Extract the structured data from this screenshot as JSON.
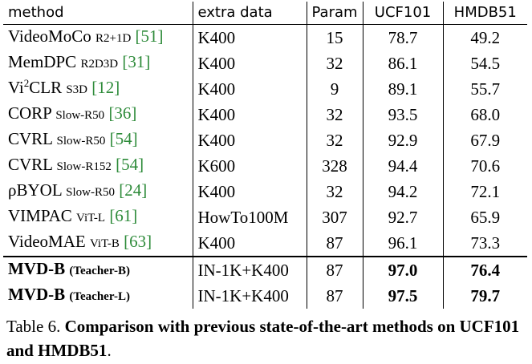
{
  "table": {
    "headers": {
      "method": "method",
      "extra_data": "extra data",
      "param": "Param",
      "ucf101": "UCF101",
      "hmdb51": "HMDB51"
    },
    "rows": [
      {
        "method": "VideoMoCo",
        "backbone": "R2+1D",
        "cite": "[51]",
        "extra": "K400",
        "param": "15",
        "ucf": "78.7",
        "hmdb": "49.2"
      },
      {
        "method": "MemDPC",
        "backbone": "R2D3D",
        "cite": "[31]",
        "extra": "K400",
        "param": "32",
        "ucf": "86.1",
        "hmdb": "54.5"
      },
      {
        "method": "Vi",
        "sup": "2",
        "method_rest": "CLR",
        "backbone": "S3D",
        "cite": "[12]",
        "extra": "K400",
        "param": "9",
        "ucf": "89.1",
        "hmdb": "55.7"
      },
      {
        "method": "CORP",
        "backbone": "Slow-R50",
        "cite": "[36]",
        "extra": "K400",
        "param": "32",
        "ucf": "93.5",
        "hmdb": "68.0"
      },
      {
        "method": "CVRL",
        "backbone": "Slow-R50",
        "cite": "[54]",
        "extra": "K400",
        "param": "32",
        "ucf": "92.9",
        "hmdb": "67.9"
      },
      {
        "method": "CVRL",
        "backbone": "Slow-R152",
        "cite": "[54]",
        "extra": "K600",
        "param": "328",
        "ucf": "94.4",
        "hmdb": "70.6"
      },
      {
        "method": "ρBYOL",
        "backbone": "Slow-R50",
        "cite": "[24]",
        "extra": "K400",
        "param": "32",
        "ucf": "94.2",
        "hmdb": "72.1"
      },
      {
        "method": "VIMPAC",
        "backbone": "ViT-L",
        "cite": "[61]",
        "extra": "HowTo100M",
        "param": "307",
        "ucf": "92.7",
        "hmdb": "65.9"
      },
      {
        "method": "VideoMAE",
        "backbone": "ViT-B",
        "cite": "[63]",
        "extra": "K400",
        "param": "87",
        "ucf": "96.1",
        "hmdb": "73.3"
      }
    ],
    "ours": [
      {
        "method": "MVD-B",
        "variant": "(Teacher-B)",
        "extra": "IN-1K+K400",
        "param": "87",
        "ucf": "97.0",
        "hmdb": "76.4"
      },
      {
        "method": "MVD-B",
        "variant": "(Teacher-L)",
        "extra": "IN-1K+K400",
        "param": "87",
        "ucf": "97.5",
        "hmdb": "79.7"
      }
    ]
  },
  "caption": {
    "label": "Table 6.",
    "text": "Comparison with previous state-of-the-art methods on UCF101 and HMDB51",
    "end": "."
  },
  "colors": {
    "citation": "#2e8b3a"
  }
}
